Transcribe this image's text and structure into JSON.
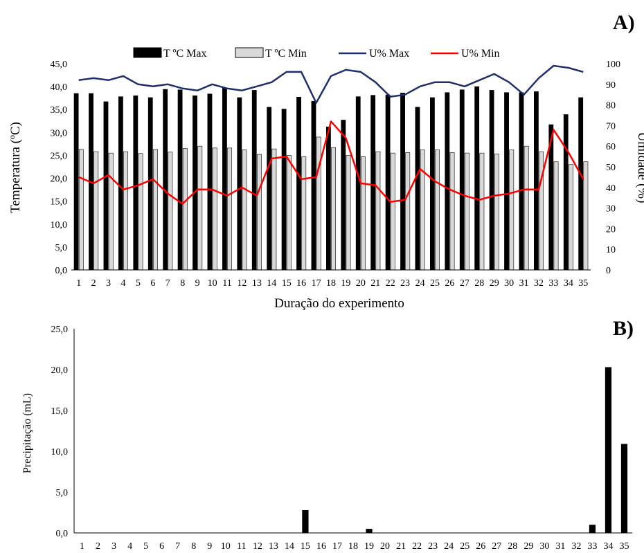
{
  "colors": {
    "tmax": "#000000",
    "tmin": "#d9d9d9",
    "umax": "#1f2f6b",
    "umin": "#ff0000",
    "precip": "#000000"
  },
  "chart_data": [
    {
      "type": "bar",
      "panel_label": "A)",
      "title": "",
      "xlabel": "Duração do experimento",
      "ylabel": "Temperatura (ºC)",
      "y2label": "Umidade (%)",
      "ylim": [
        0,
        45
      ],
      "y2lim": [
        0,
        100
      ],
      "yticks": [
        "0,0",
        "5,0",
        "10,0",
        "15,0",
        "20,0",
        "25,0",
        "30,0",
        "35,0",
        "40,0",
        "45,0"
      ],
      "y2ticks": [
        "0",
        "10",
        "20",
        "30",
        "40",
        "50",
        "60",
        "70",
        "80",
        "90",
        "100"
      ],
      "legend_position": "top",
      "categories": [
        "1",
        "2",
        "3",
        "4",
        "5",
        "6",
        "7",
        "8",
        "9",
        "10",
        "11",
        "12",
        "13",
        "14",
        "15",
        "16",
        "17",
        "18",
        "19",
        "20",
        "21",
        "22",
        "23",
        "24",
        "25",
        "26",
        "27",
        "28",
        "29",
        "30",
        "31",
        "32",
        "33",
        "34",
        "35"
      ],
      "series": [
        {
          "name": "T ºC Max",
          "type": "bar",
          "axis": "left",
          "values": [
            38.5,
            38.5,
            36.7,
            37.8,
            38.0,
            37.6,
            39.4,
            39.3,
            38.0,
            38.4,
            39.7,
            37.6,
            39.2,
            35.5,
            35.1,
            37.7,
            36.8,
            31.2,
            32.7,
            37.8,
            38.1,
            38.2,
            38.6,
            35.5,
            37.6,
            38.7,
            39.3,
            40.0,
            39.2,
            38.7,
            38.7,
            38.9,
            31.7,
            33.9,
            37.6
          ]
        },
        {
          "name": "T ºC Min",
          "type": "bar",
          "axis": "left",
          "values": [
            26.3,
            25.8,
            25.5,
            25.8,
            25.4,
            26.3,
            25.7,
            26.5,
            27.0,
            26.6,
            26.6,
            26.2,
            25.2,
            26.4,
            25.0,
            24.7,
            29.0,
            26.7,
            25.0,
            24.7,
            25.8,
            25.5,
            25.6,
            26.2,
            26.2,
            25.6,
            25.5,
            25.5,
            25.3,
            26.2,
            27.0,
            25.8,
            23.6,
            23.0,
            23.6
          ]
        },
        {
          "name": "U% Max",
          "type": "line",
          "axis": "right",
          "values": [
            92,
            93,
            92,
            94,
            90,
            89,
            90,
            88,
            87,
            90,
            88,
            87,
            89,
            91,
            96,
            96,
            81,
            94,
            97,
            96,
            91,
            84,
            85,
            89,
            91,
            91,
            89,
            92,
            95,
            91,
            85,
            93,
            99,
            98,
            96
          ]
        },
        {
          "name": "U% Min",
          "type": "line",
          "axis": "right",
          "values": [
            45,
            42,
            46,
            39,
            41,
            44,
            37,
            32,
            39,
            39,
            36,
            40,
            36,
            54,
            55,
            44,
            45,
            72,
            64,
            42,
            41,
            33,
            34,
            49,
            43,
            39,
            36,
            34,
            36,
            37,
            39,
            39,
            68,
            57,
            44
          ]
        }
      ]
    },
    {
      "type": "bar",
      "panel_label": "B)",
      "title": "",
      "xlabel": "",
      "ylabel": "Precipitação (mL)",
      "ylim": [
        0,
        25
      ],
      "yticks": [
        "0,0",
        "5,0",
        "10,0",
        "15,0",
        "20,0",
        "25,0"
      ],
      "categories": [
        "1",
        "2",
        "3",
        "4",
        "5",
        "6",
        "7",
        "8",
        "9",
        "10",
        "11",
        "12",
        "13",
        "14",
        "15",
        "16",
        "17",
        "18",
        "19",
        "20",
        "21",
        "22",
        "23",
        "24",
        "25",
        "26",
        "27",
        "28",
        "29",
        "30",
        "31",
        "32",
        "33",
        "34",
        "35"
      ],
      "values": [
        0,
        0,
        0,
        0,
        0,
        0,
        0,
        0,
        0,
        0,
        0,
        0,
        0,
        0,
        2.8,
        0,
        0,
        0,
        0.5,
        0,
        0,
        0,
        0,
        0,
        0,
        0,
        0,
        0,
        0,
        0,
        0,
        0,
        1.0,
        20.3,
        10.9
      ]
    }
  ]
}
